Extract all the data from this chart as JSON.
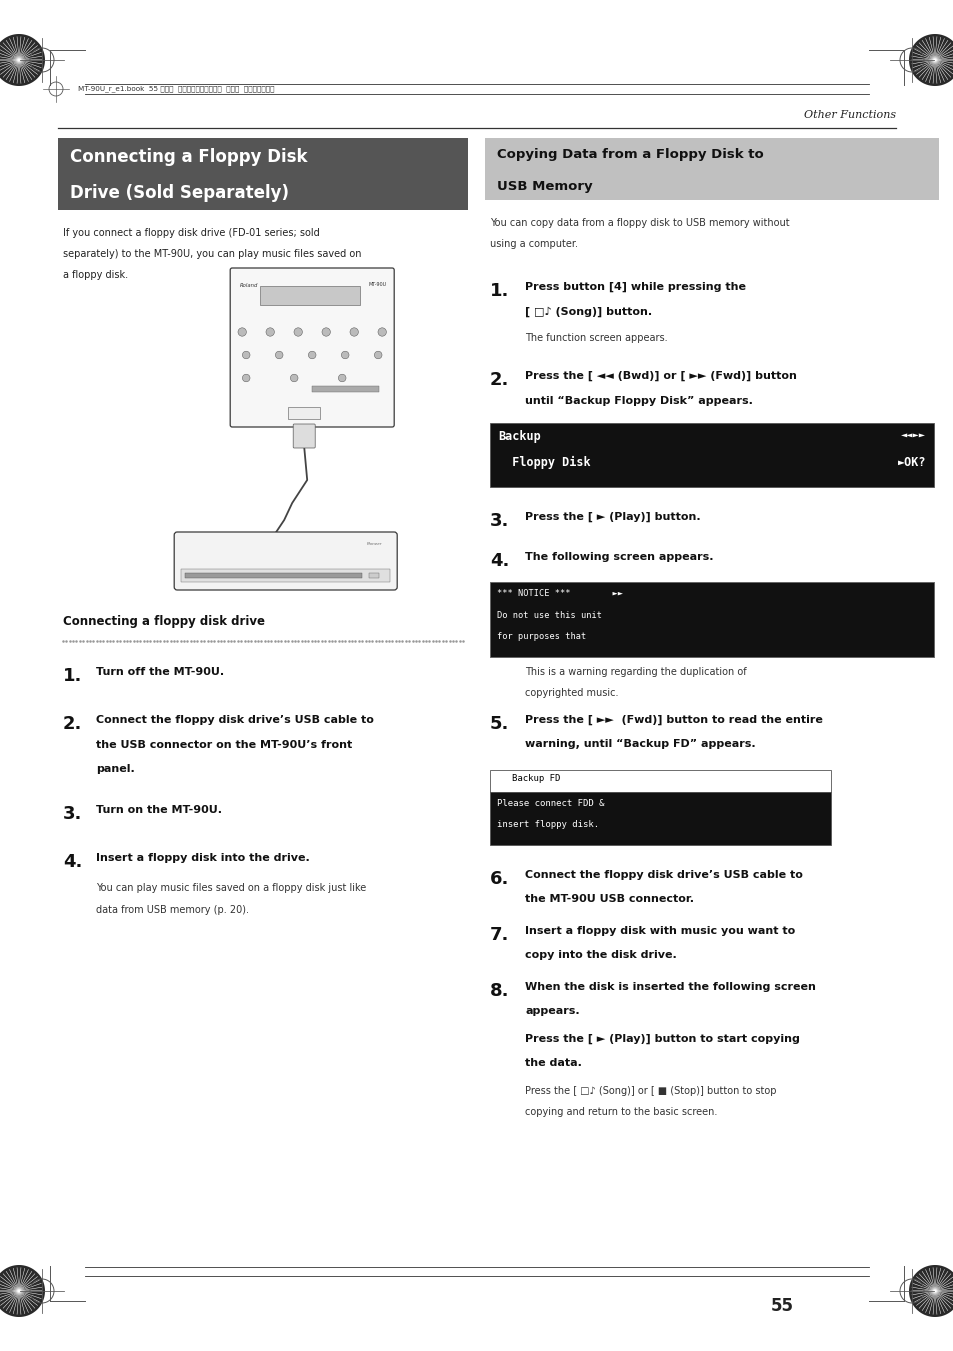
{
  "bg_color": "#ffffff",
  "page_width": 9.54,
  "page_height": 13.51,
  "header_text": "MT-90U_r_e1.book  55 ページ  ２００８年３月２４日  月曜日  午後４時４６分",
  "header_right": "Other Functions",
  "page_number": "55",
  "left_title_line1": "Connecting a Floppy Disk",
  "left_title_line2": "Drive (Sold Separately)",
  "left_title_bg": "#555555",
  "left_title_color": "#ffffff",
  "left_intro": "If you connect a floppy disk drive (FD-01 series; sold\nseparately) to the MT-90U, you can play music files saved on\na floppy disk.",
  "left_sub_title": "Connecting a floppy disk drive",
  "right_title_line1": "Copying Data from a Floppy Disk to",
  "right_title_line2": "USB Memory",
  "right_title_bg": "#c0c0c0",
  "right_title_color": "#000000",
  "right_intro": "You can copy data from a floppy disk to USB memory without\nusing a computer."
}
